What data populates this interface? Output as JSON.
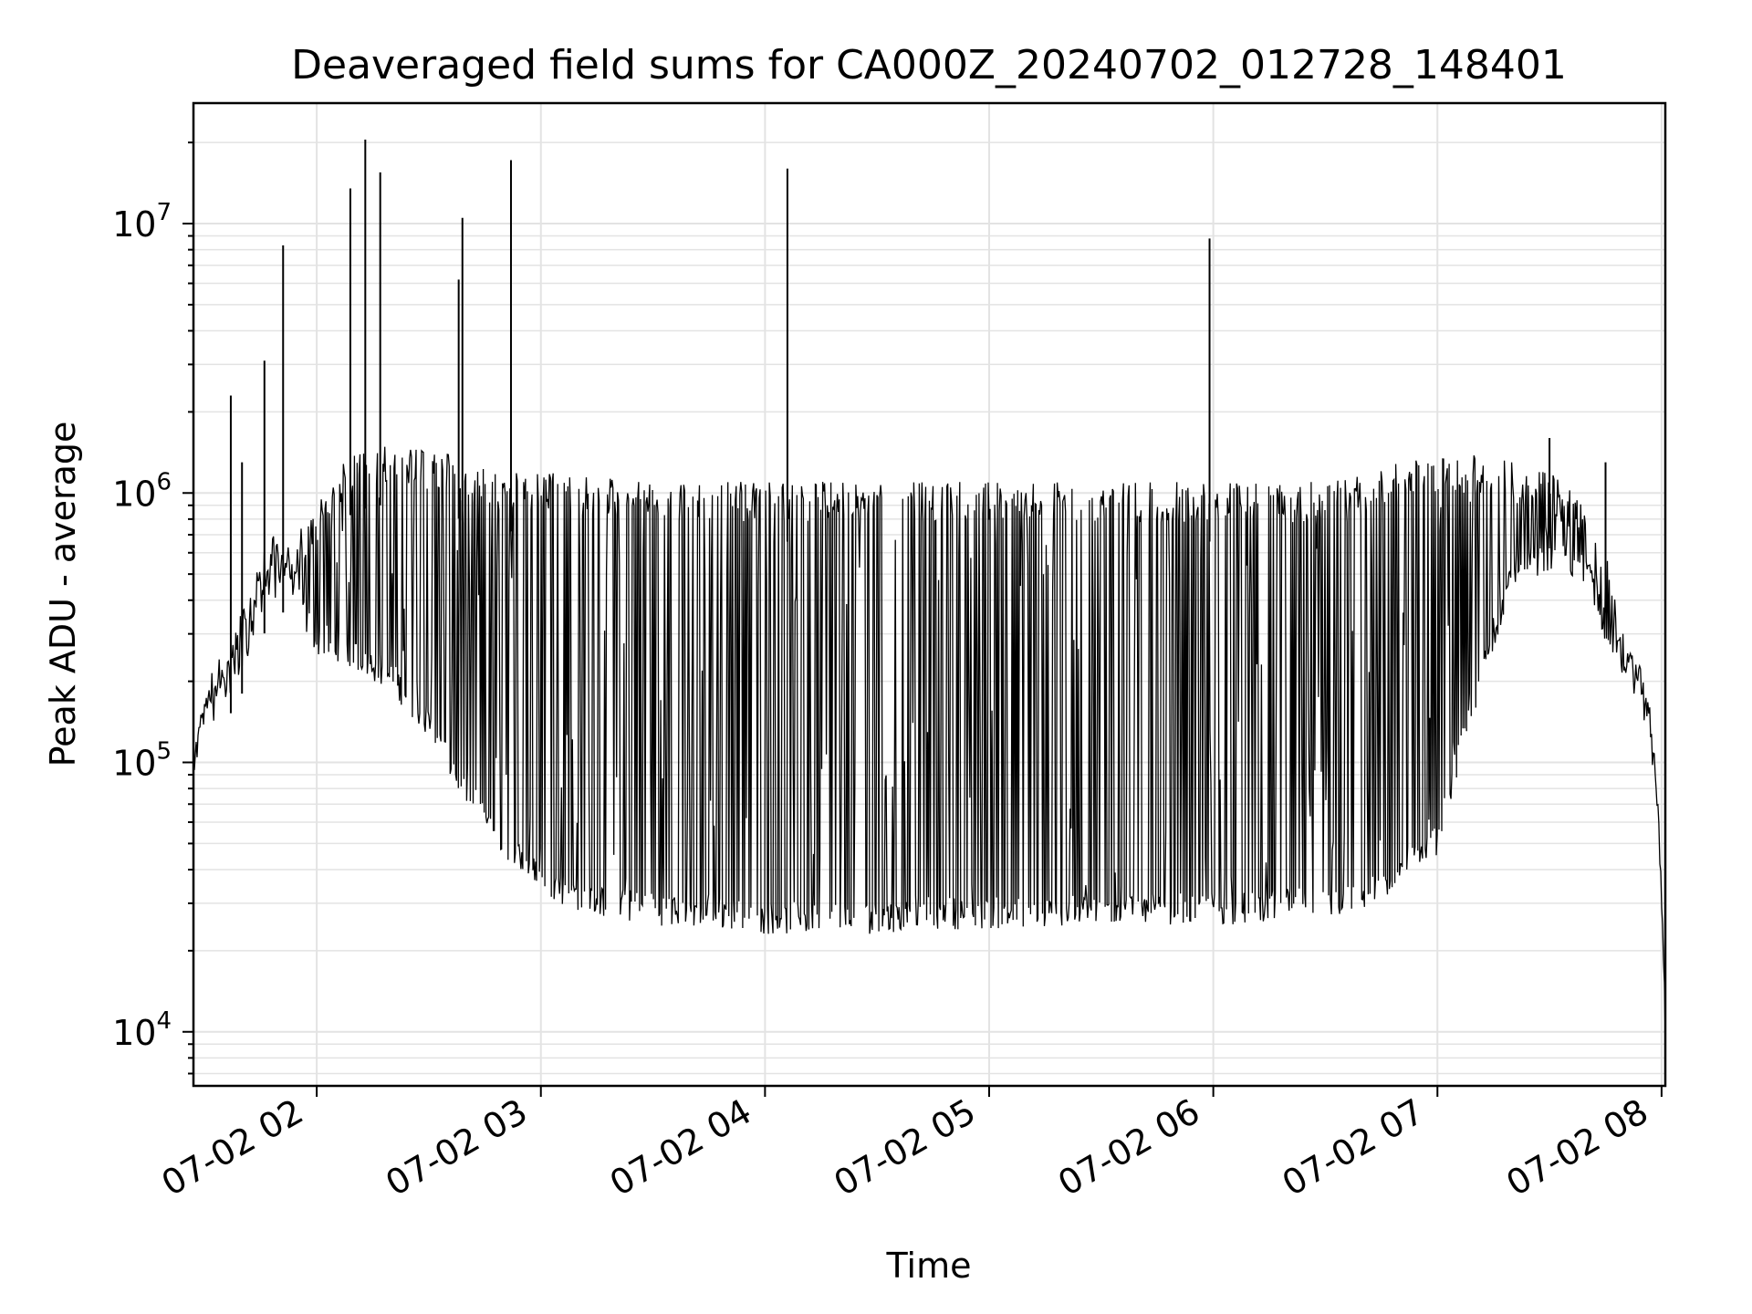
{
  "chart_data": {
    "type": "line",
    "title": "Deaveraged field sums for CA000Z_20240702_012728_148401",
    "xlabel": "Time",
    "ylabel": "Peak ADU - average",
    "yscale": "log",
    "ylim": [
      6300,
      28000000
    ],
    "xlim": [
      "07-02 01:27",
      "07-02 08:01"
    ],
    "grid": true,
    "line_color": "#000000",
    "x_ticks": [
      {
        "value": "07-02 02:00",
        "label": "07-02 02"
      },
      {
        "value": "07-02 03:00",
        "label": "07-02 03"
      },
      {
        "value": "07-02 04:00",
        "label": "07-02 04"
      },
      {
        "value": "07-02 05:00",
        "label": "07-02 05"
      },
      {
        "value": "07-02 06:00",
        "label": "07-02 06"
      },
      {
        "value": "07-02 07:00",
        "label": "07-02 07"
      },
      {
        "value": "07-02 08:00",
        "label": "07-02 08"
      }
    ],
    "y_ticks": [
      {
        "value": 10000,
        "base": "10",
        "exp": "4"
      },
      {
        "value": 100000,
        "base": "10",
        "exp": "5"
      },
      {
        "value": 1000000,
        "base": "10",
        "exp": "6"
      },
      {
        "value": 10000000,
        "base": "10",
        "exp": "7"
      }
    ],
    "series": [
      {
        "x": [
          "07-02 01:27",
          "07-02 01:30",
          "07-02 01:33",
          "07-02 01:36",
          "07-02 01:40",
          "07-02 01:44",
          "07-02 01:48",
          "07-02 01:51",
          "07-02 01:54",
          "07-02 01:57",
          "07-02 02:00",
          "07-02 02:05",
          "07-02 02:10",
          "07-02 02:15",
          "07-02 02:20",
          "07-02 02:25",
          "07-02 02:30",
          "07-02 02:35",
          "07-02 02:40",
          "07-02 02:45",
          "07-02 02:50",
          "07-02 02:55",
          "07-02 03:00",
          "07-02 03:10",
          "07-02 03:20",
          "07-02 03:30",
          "07-02 03:40",
          "07-02 03:50",
          "07-02 04:00",
          "07-02 04:10",
          "07-02 04:20",
          "07-02 04:30",
          "07-02 04:40",
          "07-02 04:50",
          "07-02 05:00",
          "07-02 05:10",
          "07-02 05:20",
          "07-02 05:30",
          "07-02 05:40",
          "07-02 05:50",
          "07-02 06:00",
          "07-02 06:10",
          "07-02 06:20",
          "07-02 06:30",
          "07-02 06:40",
          "07-02 06:50",
          "07-02 07:00",
          "07-02 07:10",
          "07-02 07:20",
          "07-02 07:30",
          "07-02 07:40",
          "07-02 07:45",
          "07-02 07:50",
          "07-02 07:55",
          "07-02 07:58",
          "07-02 08:00",
          "07-02 08:01"
        ],
        "values": [
          80000,
          150000,
          180000,
          200000,
          280000,
          420000,
          530000,
          500000,
          400000,
          300000,
          250000,
          240000,
          220000,
          200000,
          180000,
          150000,
          120000,
          90000,
          70000,
          55000,
          45000,
          38000,
          32000,
          28000,
          26000,
          25000,
          24000,
          24000,
          23000,
          23000,
          23000,
          23000,
          24000,
          24000,
          24000,
          24000,
          24000,
          25000,
          25000,
          25000,
          25000,
          25000,
          26000,
          26000,
          28000,
          33000,
          45000,
          150000,
          450000,
          500000,
          450000,
          280000,
          200000,
          170000,
          100000,
          30000,
          9000
        ],
        "peak_envelope": [
          130000,
          160000,
          200000,
          240000,
          300000,
          450000,
          560000,
          600000,
          700000,
          800000,
          900000,
          1300000,
          1400000,
          1500000,
          1500000,
          1500000,
          1400000,
          1400000,
          1300000,
          1250000,
          1200000,
          1200000,
          1200000,
          1150000,
          1150000,
          1100000,
          1100000,
          1100000,
          1100000,
          1100000,
          1100000,
          1100000,
          1100000,
          1100000,
          1100000,
          1100000,
          1100000,
          1100000,
          1100000,
          1100000,
          1100000,
          1100000,
          1100000,
          1100000,
          1200000,
          1300000,
          1400000,
          1400000,
          1300000,
          1200000,
          900000,
          600000,
          300000,
          200000,
          120000,
          40000,
          9000
        ]
      }
    ],
    "spikes": [
      {
        "x": "07-02 01:37",
        "value": 2300000
      },
      {
        "x": "07-02 01:40",
        "value": 1300000
      },
      {
        "x": "07-02 01:46",
        "value": 3100000
      },
      {
        "x": "07-02 01:51",
        "value": 8300000
      },
      {
        "x": "07-02 02:09",
        "value": 13500000
      },
      {
        "x": "07-02 02:13",
        "value": 20500000
      },
      {
        "x": "07-02 02:17",
        "value": 15500000
      },
      {
        "x": "07-02 02:38",
        "value": 6200000
      },
      {
        "x": "07-02 02:39",
        "value": 10500000
      },
      {
        "x": "07-02 02:52",
        "value": 17200000
      },
      {
        "x": "07-02 04:06",
        "value": 16000000
      },
      {
        "x": "07-02 05:59",
        "value": 8800000
      },
      {
        "x": "07-02 07:30",
        "value": 1600000
      },
      {
        "x": "07-02 07:45",
        "value": 1300000
      }
    ]
  }
}
